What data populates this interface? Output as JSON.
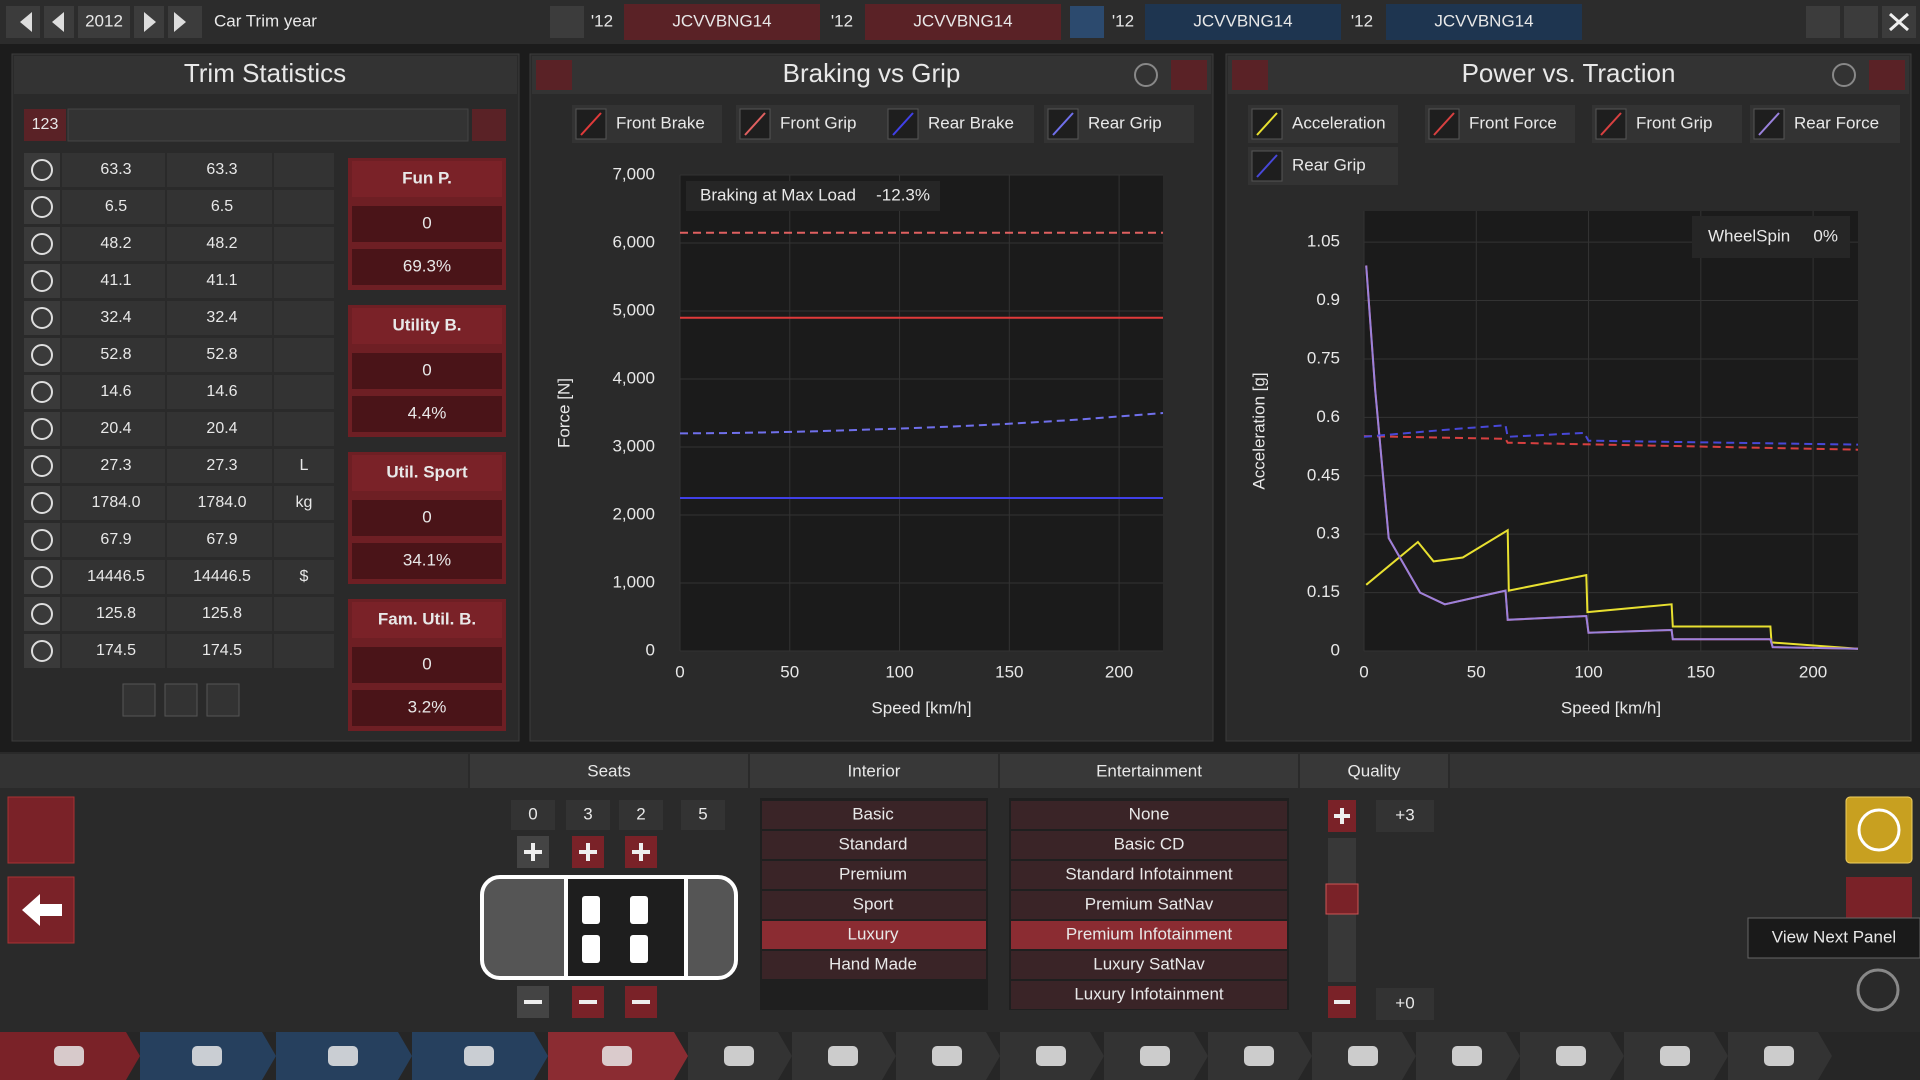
{
  "top_bar": {
    "year": "2012",
    "label": "Car Trim year",
    "compare": [
      {
        "year": "'12",
        "code": "JCVVBNG14"
      },
      {
        "year": "'12",
        "code": "JCVVBNG14"
      },
      {
        "year": "'12",
        "code": "JCVVBNG14"
      },
      {
        "year": "'12",
        "code": "JCVVBNG14"
      }
    ]
  },
  "trim_statistics": {
    "title": "Trim Statistics",
    "input": "123",
    "rows": [
      {
        "current": "63.3",
        "previous": "63.3"
      },
      {
        "current": "6.5",
        "previous": "6.5"
      },
      {
        "current": "48.2",
        "previous": "48.2"
      },
      {
        "current": "41.1",
        "previous": "41.1"
      },
      {
        "current": "32.4",
        "previous": "32.4"
      },
      {
        "current": "52.8",
        "previous": "52.8"
      },
      {
        "current": "14.6",
        "previous": "14.6"
      },
      {
        "current": "20.4",
        "previous": "20.4"
      },
      {
        "current": "27.3",
        "previous": "27.3",
        "unit": "L"
      },
      {
        "current": "1784.0",
        "previous": "1784.0",
        "unit": "kg"
      },
      {
        "current": "67.9",
        "previous": "67.9"
      },
      {
        "current": "14446.5",
        "previous": "14446.5",
        "unit": "$"
      },
      {
        "current": "125.8",
        "previous": "125.8"
      },
      {
        "current": "174.5",
        "previous": "174.5"
      }
    ],
    "scores": [
      {
        "name": "Fun P.",
        "value": "0",
        "percent": "69.3%"
      },
      {
        "name": "Utility B.",
        "value": "0",
        "percent": "4.4%"
      },
      {
        "name": "Util. Sport",
        "value": "0",
        "percent": "34.1%"
      },
      {
        "name": "Fam. Util. B.",
        "value": "0",
        "percent": "3.2%"
      }
    ]
  },
  "chart_data": [
    {
      "type": "line",
      "title": "Braking vs Grip",
      "x_label": "Speed [km/h]",
      "y_label": "Force [N]",
      "annotation": {
        "label": "Braking at Max Load",
        "value": "-12.3%"
      },
      "xlim": [
        0,
        220
      ],
      "xticks": [
        0,
        50,
        100,
        150,
        200
      ],
      "ylim": [
        0,
        7000
      ],
      "yticks": [
        0,
        {
          "value": 1000,
          "label": "1,000"
        },
        {
          "value": 2000,
          "label": "2,000"
        },
        {
          "value": 3000,
          "label": "3,000"
        },
        {
          "value": 4000,
          "label": "4,000"
        },
        {
          "value": 5000,
          "label": "5,000"
        },
        {
          "value": 6000,
          "label": "6,000"
        },
        {
          "value": 7000,
          "label": "7,000"
        }
      ],
      "grid": true,
      "series": [
        {
          "name": "Front Brake",
          "color": "#e03a3a",
          "dash": false,
          "x": [
            0,
            110,
            220
          ],
          "values": [
            4900,
            4900,
            4900
          ]
        },
        {
          "name": "Front Grip",
          "color": "#e06060",
          "dash": true,
          "x": [
            0,
            110,
            220
          ],
          "values": [
            6150,
            6150,
            6150
          ]
        },
        {
          "name": "Rear Brake",
          "color": "#4040e8",
          "dash": false,
          "x": [
            0,
            110,
            220
          ],
          "values": [
            2250,
            2250,
            2250
          ]
        },
        {
          "name": "Rear Grip",
          "color": "#7070ec",
          "dash": true,
          "x": [
            0,
            20,
            40,
            60,
            80,
            100,
            120,
            140,
            160,
            180,
            200,
            220
          ],
          "values": [
            3200,
            3205,
            3215,
            3230,
            3250,
            3270,
            3295,
            3325,
            3360,
            3400,
            3450,
            3500
          ]
        }
      ]
    },
    {
      "type": "line",
      "title": "Power vs. Traction",
      "x_label": "Speed [km/h]",
      "y_label": "Acceleration [g]",
      "annotation": {
        "label": "WheelSpin",
        "value": "0%"
      },
      "xlim": [
        0,
        220
      ],
      "xticks": [
        0,
        50,
        100,
        150,
        200
      ],
      "ylim": [
        0,
        1.13
      ],
      "yticks": [
        0,
        0.15,
        0.3,
        0.45,
        0.6,
        0.75,
        0.9,
        1.05
      ],
      "grid": true,
      "series": [
        {
          "name": "Acceleration",
          "color": "#e8e030",
          "dash": false,
          "x": [
            1,
            24,
            31,
            44,
            64,
            64.5,
            99,
            99.5,
            137,
            137.5,
            181,
            181.5,
            220
          ],
          "values": [
            0.17,
            0.28,
            0.23,
            0.24,
            0.31,
            0.155,
            0.195,
            0.1,
            0.12,
            0.063,
            0.063,
            0.022,
            0.006
          ]
        },
        {
          "name": "Front Force",
          "color": "#d84040",
          "dash": false,
          "x": [
            1,
            5,
            11,
            25,
            36,
            63,
            64,
            99,
            100,
            137,
            137.5,
            181,
            182,
            220
          ],
          "values": [
            0.99,
            0.67,
            0.29,
            0.15,
            0.12,
            0.155,
            0.08,
            0.09,
            0.047,
            0.054,
            0.03,
            0.03,
            0.01,
            0.006
          ]
        },
        {
          "name": "Front Grip",
          "color": "#d84040",
          "dash": true,
          "x": [
            0,
            63,
            64,
            220
          ],
          "values": [
            0.552,
            0.545,
            0.535,
            0.517
          ]
        },
        {
          "name": "Rear Force",
          "color": "#9a82dc",
          "dash": false,
          "x": [
            1,
            5,
            11,
            25,
            36,
            63,
            64,
            99,
            100,
            137,
            137.5,
            181,
            182,
            220
          ],
          "values": [
            0.99,
            0.67,
            0.29,
            0.15,
            0.12,
            0.155,
            0.08,
            0.09,
            0.047,
            0.054,
            0.03,
            0.03,
            0.01,
            0.006
          ]
        },
        {
          "name": "Rear Grip",
          "color": "#4848d8",
          "dash": true,
          "x": [
            0,
            40,
            63,
            64,
            98,
            100,
            220
          ],
          "values": [
            0.55,
            0.57,
            0.58,
            0.55,
            0.56,
            0.54,
            0.53
          ]
        }
      ]
    }
  ],
  "bottom": {
    "seats": {
      "title": "Seats",
      "values": [
        "0",
        "3",
        "2",
        "5"
      ]
    },
    "interior": {
      "title": "Interior",
      "options": [
        "Basic",
        "Standard",
        "Premium",
        "Sport",
        "Luxury",
        "Hand Made"
      ],
      "selected": 4
    },
    "entertainment": {
      "title": "Entertainment",
      "options": [
        "None",
        "Basic CD",
        "Standard Infotainment",
        "Premium SatNav",
        "Premium Infotainment",
        "Luxury SatNav",
        "Luxury Infotainment"
      ],
      "selected": 4
    },
    "quality": {
      "title": "Quality",
      "max": "+3",
      "min": "+0"
    },
    "tooltip": "View Next Panel"
  }
}
